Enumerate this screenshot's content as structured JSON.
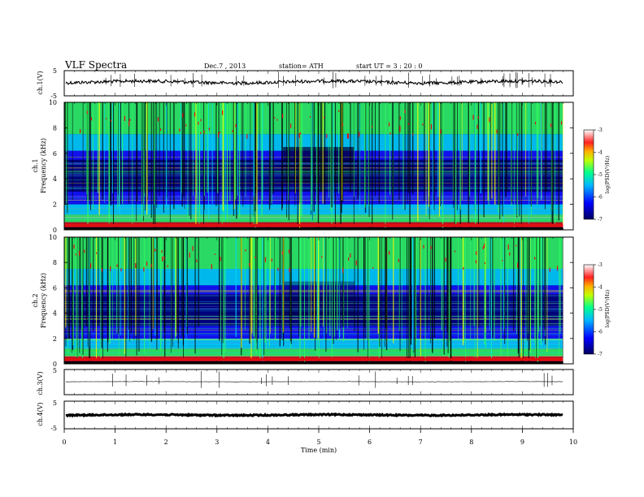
{
  "header": {
    "title": "VLF  Spectra",
    "date": "Dec.7  , 2013",
    "station": "station= ATH",
    "start": "start  UT  =   3  : 20 : 0"
  },
  "chart_data": [
    {
      "type": "line",
      "panel": "ch1-waveform",
      "ylabel": "ch.1(V)",
      "ylim": [
        -5,
        5
      ],
      "yticks": [
        "5",
        "-5"
      ],
      "xlim": [
        0,
        10
      ],
      "x_end_min": 9.8,
      "series": [
        {
          "values_description_none": null
        }
      ]
    },
    {
      "type": "heatmap",
      "panel": "ch1-spectrogram",
      "ylabel": "ch.1\nFrequency (kHz)",
      "ylabel_line1": "ch.1",
      "ylabel_line2": "Frequency  (kHz)",
      "ylim": [
        0,
        10
      ],
      "yticks": [
        "0",
        "2",
        "4",
        "6",
        "8",
        "10"
      ],
      "xlim": [
        0,
        10
      ],
      "colorbar": {
        "label": "log(PSD(V²/Hz)",
        "range": [
          -7,
          -3
        ],
        "ticks": [
          "-3",
          "-4",
          "-5",
          "-6",
          "-7"
        ],
        "colors": [
          "#000066",
          "#0000ff",
          "#00c0ff",
          "#00ff80",
          "#ffff00",
          "#ff4000",
          "#ffffff"
        ]
      }
    },
    {
      "type": "heatmap",
      "panel": "ch2-spectrogram",
      "ylabel_line1": "ch.2",
      "ylabel_line2": "Frequency  (kHz)",
      "ylim": [
        0,
        10
      ],
      "yticks": [
        "0",
        "2",
        "4",
        "6",
        "8",
        "10"
      ],
      "xlim": [
        0,
        10
      ],
      "colorbar": {
        "label": "log(PSD(V²/Hz)",
        "range": [
          -7,
          -3
        ],
        "ticks": [
          "-3",
          "-4",
          "-5",
          "-6",
          "-7"
        ]
      }
    },
    {
      "type": "line",
      "panel": "ch3-waveform",
      "ylabel": "ch.3(V)",
      "ylim": [
        -5,
        5
      ],
      "yticks": [
        "5",
        "-5"
      ],
      "xlim": [
        0,
        10
      ]
    },
    {
      "type": "line",
      "panel": "ch4-waveform",
      "ylabel": "ch.4(V)",
      "ylim": [
        -5,
        5
      ],
      "yticks": [
        "5",
        "-5"
      ],
      "xlim": [
        0,
        10
      ]
    }
  ],
  "xaxis": {
    "label": "Time  (min)",
    "ticks": [
      "0",
      "1",
      "2",
      "3",
      "4",
      "5",
      "6",
      "7",
      "8",
      "9",
      "10"
    ]
  },
  "colors": {
    "background": "#ffffff",
    "deep_blue": "#00007a",
    "blue": "#1414ff",
    "cyan": "#00d8ff",
    "green": "#30ff60",
    "yellow": "#ffff00",
    "red": "#e01010"
  }
}
